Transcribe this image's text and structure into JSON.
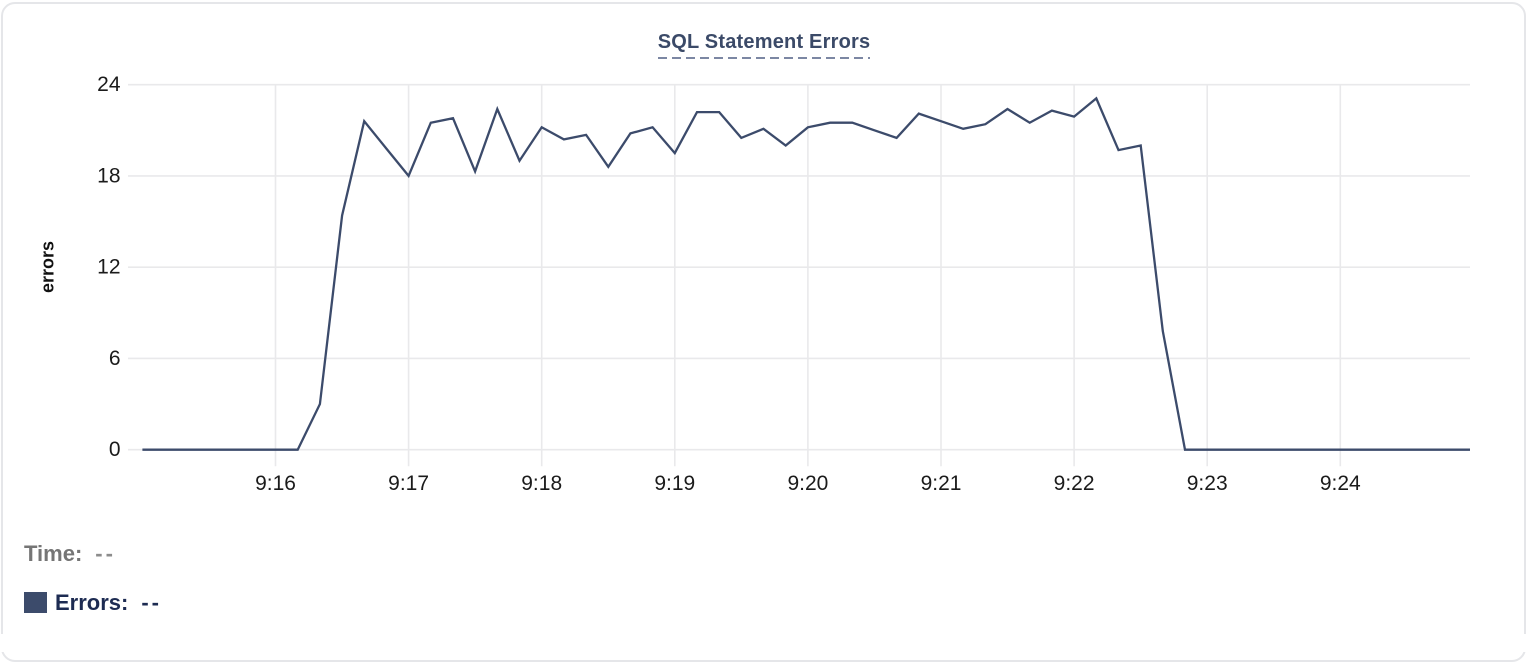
{
  "card": {
    "background": "#ffffff",
    "border_color": "#e5e6e9"
  },
  "chart_data": {
    "type": "line",
    "title": "SQL Statement Errors",
    "xlabel": "",
    "ylabel": "errors",
    "ylim": [
      0,
      24
    ],
    "y_ticks": [
      0,
      6,
      12,
      18,
      24
    ],
    "x_ticks": [
      {
        "label": "9:16",
        "minutes_from_916": 0
      },
      {
        "label": "9:17",
        "minutes_from_916": 1
      },
      {
        "label": "9:18",
        "minutes_from_916": 2
      },
      {
        "label": "9:19",
        "minutes_from_916": 3
      },
      {
        "label": "9:20",
        "minutes_from_916": 4
      },
      {
        "label": "9:21",
        "minutes_from_916": 5
      },
      {
        "label": "9:22",
        "minutes_from_916": 6
      },
      {
        "label": "9:23",
        "minutes_from_916": 7
      },
      {
        "label": "9:24",
        "minutes_from_916": 8
      }
    ],
    "grid": true,
    "grid_color": "#e9e9eb",
    "tick_label_color": "#1b1b1b",
    "axis_title_color": "#111111",
    "legend_position": "bottom-left",
    "series": [
      {
        "name": "Errors",
        "color": "#3c4b6b",
        "x_times": [
          "9:15:00",
          "9:15:10",
          "9:15:20",
          "9:15:30",
          "9:15:40",
          "9:15:50",
          "9:16:00",
          "9:16:10",
          "9:16:20",
          "9:16:30",
          "9:16:40",
          "9:16:50",
          "9:17:00",
          "9:17:10",
          "9:17:20",
          "9:17:30",
          "9:17:40",
          "9:17:50",
          "9:18:00",
          "9:18:10",
          "9:18:20",
          "9:18:30",
          "9:18:40",
          "9:18:50",
          "9:19:00",
          "9:19:10",
          "9:19:20",
          "9:19:30",
          "9:19:40",
          "9:19:50",
          "9:20:00",
          "9:20:10",
          "9:20:20",
          "9:20:30",
          "9:20:40",
          "9:20:50",
          "9:21:00",
          "9:21:10",
          "9:21:20",
          "9:21:30",
          "9:21:40",
          "9:21:50",
          "9:22:00",
          "9:22:10",
          "9:22:20",
          "9:22:30",
          "9:22:40",
          "9:22:50",
          "9:23:00",
          "9:23:10",
          "9:23:20",
          "9:23:30",
          "9:23:40",
          "9:23:50",
          "9:24:00",
          "9:24:10",
          "9:24:20",
          "9:24:30",
          "9:24:40",
          "9:24:50",
          "9:25:00"
        ],
        "values": [
          0,
          0,
          0,
          0,
          0,
          0,
          0,
          0,
          3,
          15.4,
          21.6,
          19.8,
          18,
          21.5,
          21.8,
          18.3,
          22.4,
          19,
          21.2,
          20.4,
          20.7,
          18.6,
          20.8,
          21.2,
          19.5,
          22.2,
          22.2,
          20.5,
          21.1,
          20,
          21.2,
          21.5,
          21.5,
          21,
          20.5,
          22.1,
          21.6,
          21.1,
          21.4,
          22.4,
          21.5,
          22.3,
          21.9,
          23.1,
          19.7,
          20,
          7.8,
          0,
          0,
          0,
          0,
          0,
          0,
          0,
          0,
          0,
          0,
          0,
          0,
          0,
          0
        ]
      }
    ]
  },
  "title": {
    "text": "SQL Statement Errors",
    "color": "#3b4a68",
    "underline_color": "#7c87a3"
  },
  "y_axis_title": "errors",
  "legend": {
    "time_label": "Time:",
    "time_value": "--",
    "series_label": "Errors:",
    "series_value": "--",
    "swatch_color": "#3c4b6b"
  }
}
